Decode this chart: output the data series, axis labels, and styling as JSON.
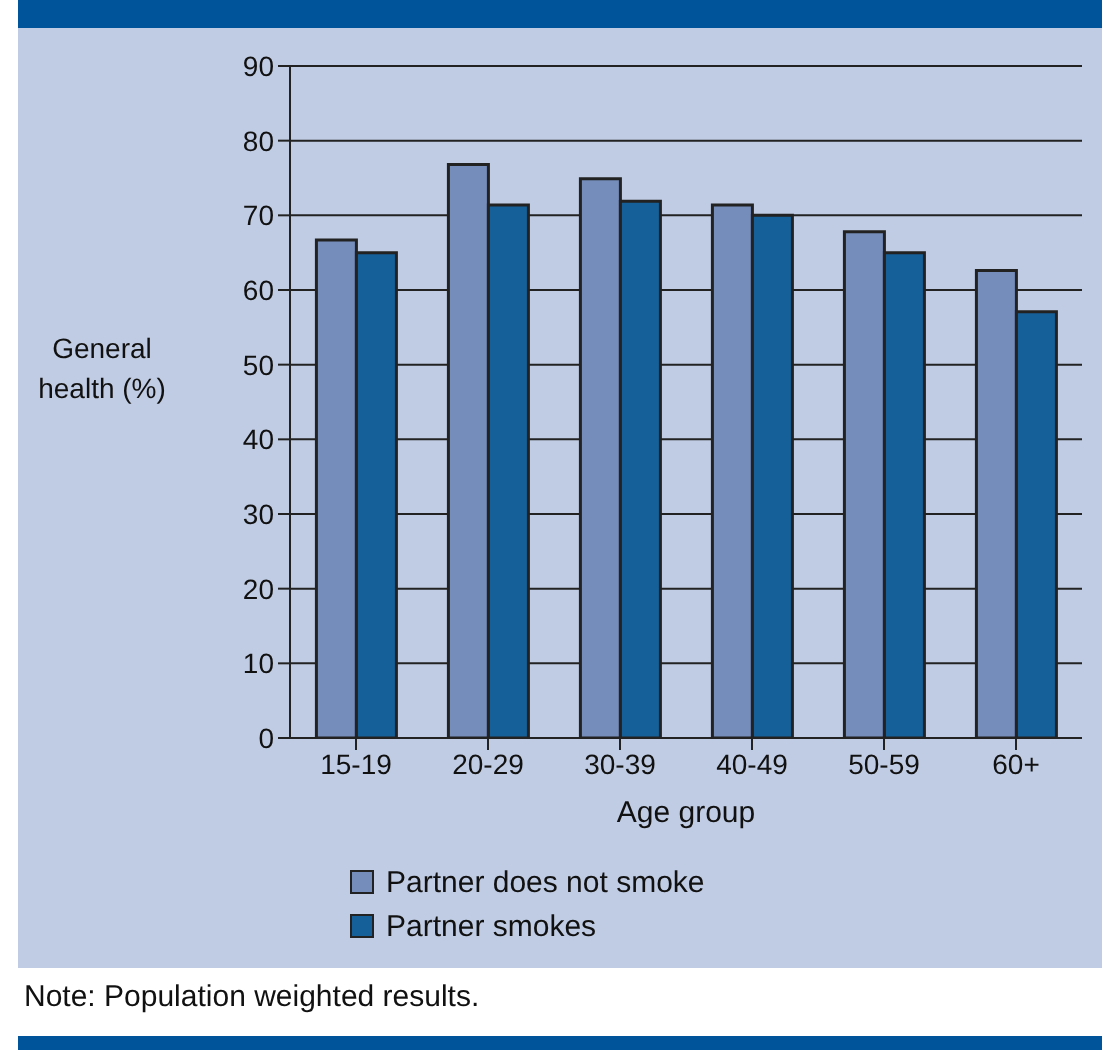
{
  "chart_data": {
    "type": "bar",
    "xlabel": "Age group",
    "ylabel": "General health (%)",
    "categories": [
      "15-19",
      "20-29",
      "30-39",
      "40-49",
      "50-59",
      "60+"
    ],
    "series": [
      {
        "name": "Partner does not smoke",
        "color": "#758dba",
        "values": [
          66.7,
          76.8,
          74.9,
          71.4,
          67.8,
          62.6
        ]
      },
      {
        "name": "Partner smokes",
        "color": "#16609a",
        "values": [
          65,
          71.4,
          71.9,
          70,
          65,
          57.1
        ]
      }
    ],
    "ylim": [
      0,
      90
    ],
    "yticks": [
      0,
      10,
      20,
      30,
      40,
      50,
      60,
      70,
      80,
      90
    ],
    "grid": "y",
    "legend": "bottom",
    "annotations": [
      "Note: Population weighted results."
    ]
  }
}
